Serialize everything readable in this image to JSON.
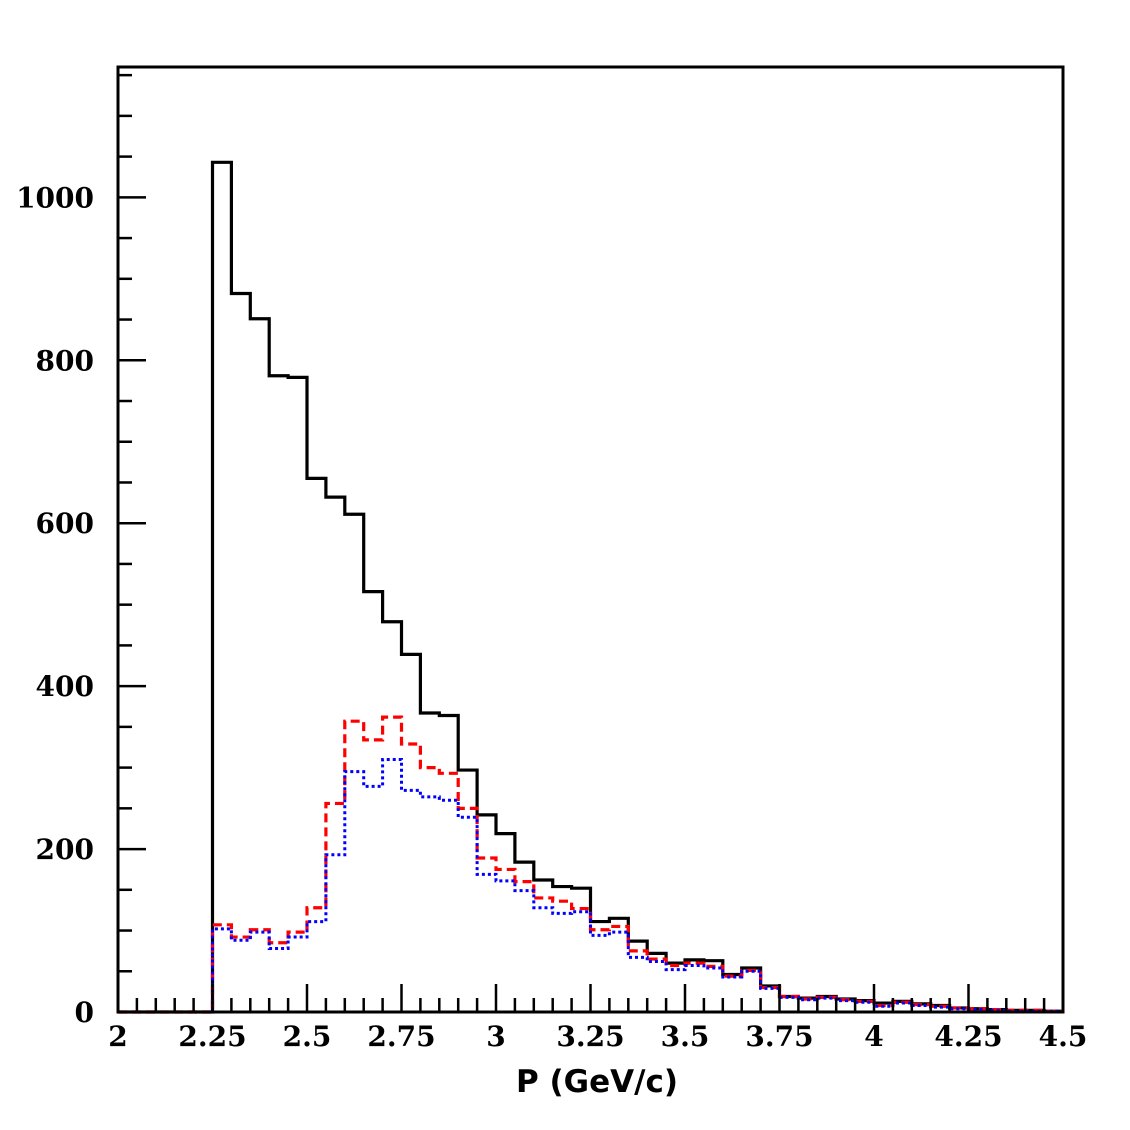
{
  "chart_data": {
    "type": "histogram",
    "xlabel": "P (GeV/c)",
    "ylabel": "",
    "xlim": [
      2,
      4.5
    ],
    "ylim": [
      0,
      1160
    ],
    "bin_width": 0.05,
    "x_ticks": [
      2,
      2.25,
      2.5,
      2.75,
      3,
      3.25,
      3.5,
      3.75,
      4,
      4.25,
      4.5
    ],
    "x_tick_labels": [
      "2",
      "2.25",
      "2.5",
      "2.75",
      "3",
      "3.25",
      "3.5",
      "3.75",
      "4",
      "4.25",
      "4.5"
    ],
    "y_ticks": [
      0,
      200,
      400,
      600,
      800,
      1000
    ],
    "y_tick_labels": [
      "0",
      "200",
      "400",
      "600",
      "800",
      "1000"
    ],
    "bin_edges": [
      2.0,
      2.05,
      2.1,
      2.15,
      2.2,
      2.25,
      2.3,
      2.35,
      2.4,
      2.45,
      2.5,
      2.55,
      2.6,
      2.65,
      2.7,
      2.75,
      2.8,
      2.85,
      2.9,
      2.95,
      3.0,
      3.05,
      3.1,
      3.15,
      3.2,
      3.25,
      3.3,
      3.35,
      3.4,
      3.45,
      3.5,
      3.55,
      3.6,
      3.65,
      3.7,
      3.75,
      3.8,
      3.85,
      3.9,
      3.95,
      4.0,
      4.05,
      4.1,
      4.15,
      4.2,
      4.25,
      4.3,
      4.35,
      4.4,
      4.45,
      4.5
    ],
    "series": [
      {
        "style": "solid",
        "color": "#000000",
        "values": [
          0,
          0,
          0,
          0,
          0,
          1043,
          882,
          851,
          781,
          779,
          655,
          632,
          611,
          516,
          479,
          439,
          367,
          364,
          297,
          242,
          219,
          184,
          162,
          154,
          152,
          111,
          115,
          87,
          72,
          60,
          64,
          63,
          46,
          54,
          32,
          19,
          17,
          19,
          16,
          14,
          11,
          13,
          10,
          8,
          5,
          4,
          3,
          2,
          2,
          1
        ]
      },
      {
        "style": "dashed",
        "color": "#ff0000",
        "values": [
          0,
          0,
          0,
          0,
          0,
          107,
          92,
          101,
          85,
          98,
          128,
          256,
          357,
          334,
          362,
          329,
          300,
          293,
          250,
          189,
          175,
          160,
          140,
          136,
          127,
          101,
          105,
          75,
          65,
          57,
          60,
          56,
          44,
          51,
          30,
          19,
          16,
          18,
          15,
          13,
          8,
          12,
          9,
          7,
          5,
          4,
          3,
          2,
          2,
          1
        ]
      },
      {
        "style": "dotted",
        "color": "#0000ff",
        "values": [
          0,
          0,
          0,
          0,
          0,
          102,
          88,
          98,
          78,
          92,
          111,
          193,
          295,
          277,
          310,
          272,
          264,
          260,
          239,
          169,
          161,
          149,
          128,
          121,
          123,
          94,
          98,
          67,
          62,
          52,
          57,
          54,
          43,
          50,
          29,
          18,
          15,
          17,
          14,
          12,
          7,
          11,
          8,
          6,
          4,
          3,
          2,
          1,
          1,
          1
        ]
      }
    ]
  }
}
